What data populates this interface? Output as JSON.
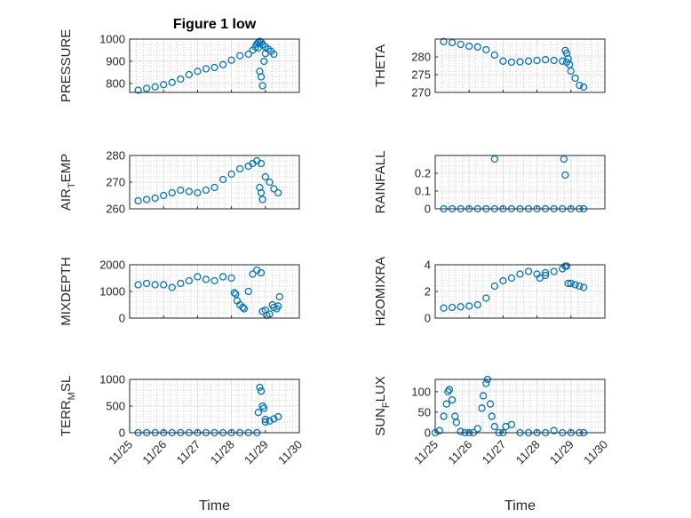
{
  "figure": {
    "title": "Figure 1 low",
    "xlabel": "Time",
    "marker_color": "#0072BD",
    "date_ticks": [
      "11/25",
      "11/26",
      "11/27",
      "11/28",
      "11/29",
      "11/30"
    ]
  },
  "chart_data": [
    {
      "type": "scatter",
      "ylabel": "PRESSURE",
      "ylim": [
        760,
        1000
      ],
      "yticks": [
        800,
        900,
        1000
      ],
      "x_date_range": [
        "11/25",
        "11/30"
      ],
      "grid": true,
      "series": [
        {
          "x": [
            "11/25 06:00",
            "11/25 12:00",
            "11/25 18:00",
            "11/26 00:00",
            "11/26 06:00",
            "11/26 12:00",
            "11/26 18:00",
            "11/27 00:00",
            "11/27 06:00",
            "11/27 12:00",
            "11/27 18:00",
            "11/28 00:00",
            "11/28 06:00",
            "11/28 12:00",
            "11/28 15:00",
            "11/28 17:00",
            "11/28 18:00",
            "11/28 19:00",
            "11/28 20:00",
            "11/28 21:00",
            "11/28 22:00",
            "11/29 00:00",
            "11/29 02:00",
            "11/29 04:00",
            "11/29 06:00"
          ],
          "y": [
            770,
            778,
            785,
            795,
            805,
            820,
            840,
            855,
            866,
            872,
            885,
            905,
            925,
            932,
            950,
            965,
            978,
            985,
            990,
            986,
            975,
            965,
            955,
            945,
            932
          ]
        },
        {
          "x": [
            "11/28 19:00",
            "11/28 20:00",
            "11/28 21:00",
            "11/28 22:00",
            "11/28 23:00",
            "11/29 00:00"
          ],
          "y": [
            960,
            855,
            830,
            790,
            900,
            935
          ]
        }
      ]
    },
    {
      "type": "scatter",
      "ylabel": "THETA",
      "ylim": [
        270,
        285
      ],
      "yticks": [
        270,
        275,
        280
      ],
      "x_date_range": [
        "11/25",
        "11/30"
      ],
      "grid": true,
      "series": [
        {
          "x": [
            "11/25 06:00",
            "11/25 12:00",
            "11/25 18:00",
            "11/26 00:00",
            "11/26 06:00",
            "11/26 12:00",
            "11/26 18:00",
            "11/27 00:00",
            "11/27 06:00",
            "11/27 12:00",
            "11/27 18:00",
            "11/28 00:00",
            "11/28 06:00",
            "11/28 12:00",
            "11/28 18:00",
            "11/28 21:00",
            "11/29 00:00",
            "11/29 03:00",
            "11/29 06:00",
            "11/29 09:00"
          ],
          "y": [
            284.3,
            284,
            283.5,
            283,
            282.8,
            282,
            280.5,
            278.8,
            278.5,
            278.6,
            278.8,
            279,
            279.2,
            279,
            278.8,
            278.5,
            276,
            274,
            272,
            271.5
          ]
        },
        {
          "x": [
            "11/28 20:00",
            "11/28 21:00",
            "11/28 22:00",
            "11/28 23:00"
          ],
          "y": [
            281.8,
            281,
            279.5,
            277.8
          ]
        }
      ]
    },
    {
      "type": "scatter",
      "ylabel": "AIR",
      "ylabel_sub": "T",
      "ylabel_tail": "EMP",
      "ylim": [
        260,
        280
      ],
      "yticks": [
        260,
        270,
        280
      ],
      "x_date_range": [
        "11/25",
        "11/30"
      ],
      "grid": true,
      "series": [
        {
          "x": [
            "11/25 06:00",
            "11/25 12:00",
            "11/25 18:00",
            "11/26 00:00",
            "11/26 06:00",
            "11/26 12:00",
            "11/26 18:00",
            "11/27 00:00",
            "11/27 06:00",
            "11/27 12:00",
            "11/27 18:00",
            "11/28 00:00",
            "11/28 06:00",
            "11/28 12:00",
            "11/28 15:00",
            "11/28 18:00",
            "11/28 21:00",
            "11/29 00:00",
            "11/29 03:00",
            "11/29 06:00",
            "11/29 09:00"
          ],
          "y": [
            263,
            263.5,
            264,
            265,
            266,
            267,
            266.5,
            266,
            267,
            268,
            271,
            273,
            275,
            276,
            277,
            278,
            277,
            272,
            270,
            267.5,
            266
          ]
        },
        {
          "x": [
            "11/28 20:00",
            "11/28 21:00",
            "11/28 22:00"
          ],
          "y": [
            268,
            266,
            263.5
          ]
        }
      ]
    },
    {
      "type": "scatter",
      "ylabel": "RAINFALL",
      "ylim": [
        0,
        0.3
      ],
      "yticks": [
        0,
        0.1,
        0.2
      ],
      "x_date_range": [
        "11/25",
        "11/30"
      ],
      "grid": true,
      "series": [
        {
          "x": [
            "11/25 06:00",
            "11/25 12:00",
            "11/25 18:00",
            "11/26 00:00",
            "11/26 06:00",
            "11/26 12:00",
            "11/26 18:00",
            "11/27 00:00",
            "11/27 06:00",
            "11/27 12:00",
            "11/27 18:00",
            "11/28 00:00",
            "11/28 06:00",
            "11/28 12:00",
            "11/28 18:00",
            "11/29 00:00",
            "11/29 06:00",
            "11/29 09:00"
          ],
          "y": [
            0,
            0,
            0,
            0,
            0,
            0,
            0,
            0,
            0,
            0,
            0,
            0,
            0,
            0,
            0,
            0,
            0,
            0
          ]
        },
        {
          "x": [
            "11/26 18:00",
            "11/28 19:00",
            "11/28 20:00"
          ],
          "y": [
            0.28,
            0.28,
            0.19
          ]
        }
      ]
    },
    {
      "type": "scatter",
      "ylabel": "MIXDEPTH",
      "ylim": [
        0,
        2000
      ],
      "yticks": [
        0,
        1000,
        2000
      ],
      "x_date_range": [
        "11/25",
        "11/30"
      ],
      "grid": true,
      "series": [
        {
          "x": [
            "11/25 06:00",
            "11/25 12:00",
            "11/25 18:00",
            "11/26 00:00",
            "11/26 06:00",
            "11/26 12:00",
            "11/26 18:00",
            "11/27 00:00",
            "11/27 06:00",
            "11/27 12:00",
            "11/27 18:00",
            "11/28 00:00",
            "11/28 03:00",
            "11/28 06:00",
            "11/28 09:00",
            "11/28 12:00",
            "11/28 15:00",
            "11/28 18:00",
            "11/28 21:00",
            "11/29 00:00",
            "11/29 03:00",
            "11/29 06:00",
            "11/29 09:00"
          ],
          "y": [
            1250,
            1300,
            1250,
            1250,
            1150,
            1300,
            1400,
            1550,
            1450,
            1400,
            1550,
            1500,
            900,
            500,
            350,
            1000,
            1650,
            1800,
            1700,
            300,
            150,
            400,
            450
          ]
        },
        {
          "x": [
            "11/28 02:00",
            "11/28 04:00",
            "11/28 08:00",
            "11/28 22:00",
            "11/29 01:00",
            "11/29 05:00",
            "11/29 08:00",
            "11/29 10:00"
          ],
          "y": [
            950,
            650,
            400,
            250,
            100,
            500,
            350,
            800
          ]
        }
      ]
    },
    {
      "type": "scatter",
      "ylabel": "H2OMIXRA",
      "ylim": [
        0,
        4
      ],
      "yticks": [
        0,
        2,
        4
      ],
      "x_date_range": [
        "11/25",
        "11/30"
      ],
      "grid": true,
      "series": [
        {
          "x": [
            "11/25 06:00",
            "11/25 12:00",
            "11/25 18:00",
            "11/26 00:00",
            "11/26 06:00",
            "11/26 12:00",
            "11/26 18:00",
            "11/27 00:00",
            "11/27 06:00",
            "11/27 12:00",
            "11/27 18:00",
            "11/28 00:00",
            "11/28 06:00",
            "11/28 12:00",
            "11/28 18:00",
            "11/28 21:00",
            "11/29 00:00",
            "11/29 03:00",
            "11/29 06:00",
            "11/29 09:00"
          ],
          "y": [
            0.75,
            0.8,
            0.85,
            0.9,
            1.0,
            1.5,
            2.4,
            2.8,
            3.0,
            3.3,
            3.5,
            3.3,
            3.4,
            3.5,
            3.7,
            3.9,
            2.6,
            2.5,
            2.4,
            2.3
          ]
        },
        {
          "x": [
            "11/28 02:00",
            "11/28 06:00",
            "11/28 20:00",
            "11/28 22:00"
          ],
          "y": [
            3.0,
            3.2,
            3.9,
            2.6
          ]
        }
      ]
    },
    {
      "type": "scatter",
      "ylabel": "TERR",
      "ylabel_sub": "M",
      "ylabel_tail": "SL",
      "ylim": [
        0,
        1000
      ],
      "yticks": [
        0,
        500,
        1000
      ],
      "x_date_range": [
        "11/25",
        "11/30"
      ],
      "grid": true,
      "series": [
        {
          "x": [
            "11/25 06:00",
            "11/25 12:00",
            "11/25 18:00",
            "11/26 00:00",
            "11/26 06:00",
            "11/26 12:00",
            "11/26 18:00",
            "11/27 00:00",
            "11/27 06:00",
            "11/27 12:00",
            "11/27 18:00",
            "11/28 00:00",
            "11/28 06:00",
            "11/28 12:00",
            "11/28 18:00",
            "11/29 00:00",
            "11/29 03:00",
            "11/29 06:00",
            "11/29 09:00"
          ],
          "y": [
            0,
            0,
            0,
            0,
            0,
            0,
            0,
            0,
            0,
            0,
            0,
            0,
            0,
            0,
            0,
            250,
            220,
            260,
            300
          ]
        },
        {
          "x": [
            "11/28 19:00",
            "11/28 20:00",
            "11/28 21:00",
            "11/28 22:00",
            "11/28 23:00",
            "11/29 00:00"
          ],
          "y": [
            380,
            850,
            780,
            500,
            460,
            200
          ]
        }
      ]
    },
    {
      "type": "scatter",
      "ylabel": "SUN",
      "ylabel_sub": "F",
      "ylabel_tail": "LUX",
      "ylim": [
        0,
        130
      ],
      "yticks": [
        0,
        50,
        100
      ],
      "x_date_range": [
        "11/25",
        "11/30"
      ],
      "grid": true,
      "series": [
        {
          "x": [
            "11/25 00:00",
            "11/25 03:00",
            "11/25 06:00",
            "11/25 09:00",
            "11/25 12:00",
            "11/25 15:00",
            "11/25 18:00",
            "11/25 21:00",
            "11/26 00:00",
            "11/26 03:00",
            "11/26 06:00",
            "11/26 09:00",
            "11/26 12:00",
            "11/26 15:00",
            "11/26 18:00",
            "11/26 21:00",
            "11/27 00:00",
            "11/27 06:00",
            "11/27 12:00",
            "11/27 18:00",
            "11/28 00:00",
            "11/28 06:00",
            "11/28 12:00",
            "11/28 18:00",
            "11/29 00:00",
            "11/29 06:00",
            "11/29 09:00"
          ],
          "y": [
            0,
            5,
            40,
            100,
            80,
            25,
            3,
            0,
            0,
            0,
            10,
            60,
            120,
            70,
            15,
            0,
            0,
            20,
            0,
            0,
            0,
            0,
            5,
            0,
            0,
            0,
            0
          ]
        },
        {
          "x": [
            "11/25 08:00",
            "11/25 10:00",
            "11/25 14:00",
            "11/26 10:00",
            "11/26 13:00",
            "11/26 16:00",
            "11/27 02:00"
          ],
          "y": [
            70,
            105,
            40,
            90,
            130,
            40,
            15
          ]
        }
      ]
    }
  ]
}
